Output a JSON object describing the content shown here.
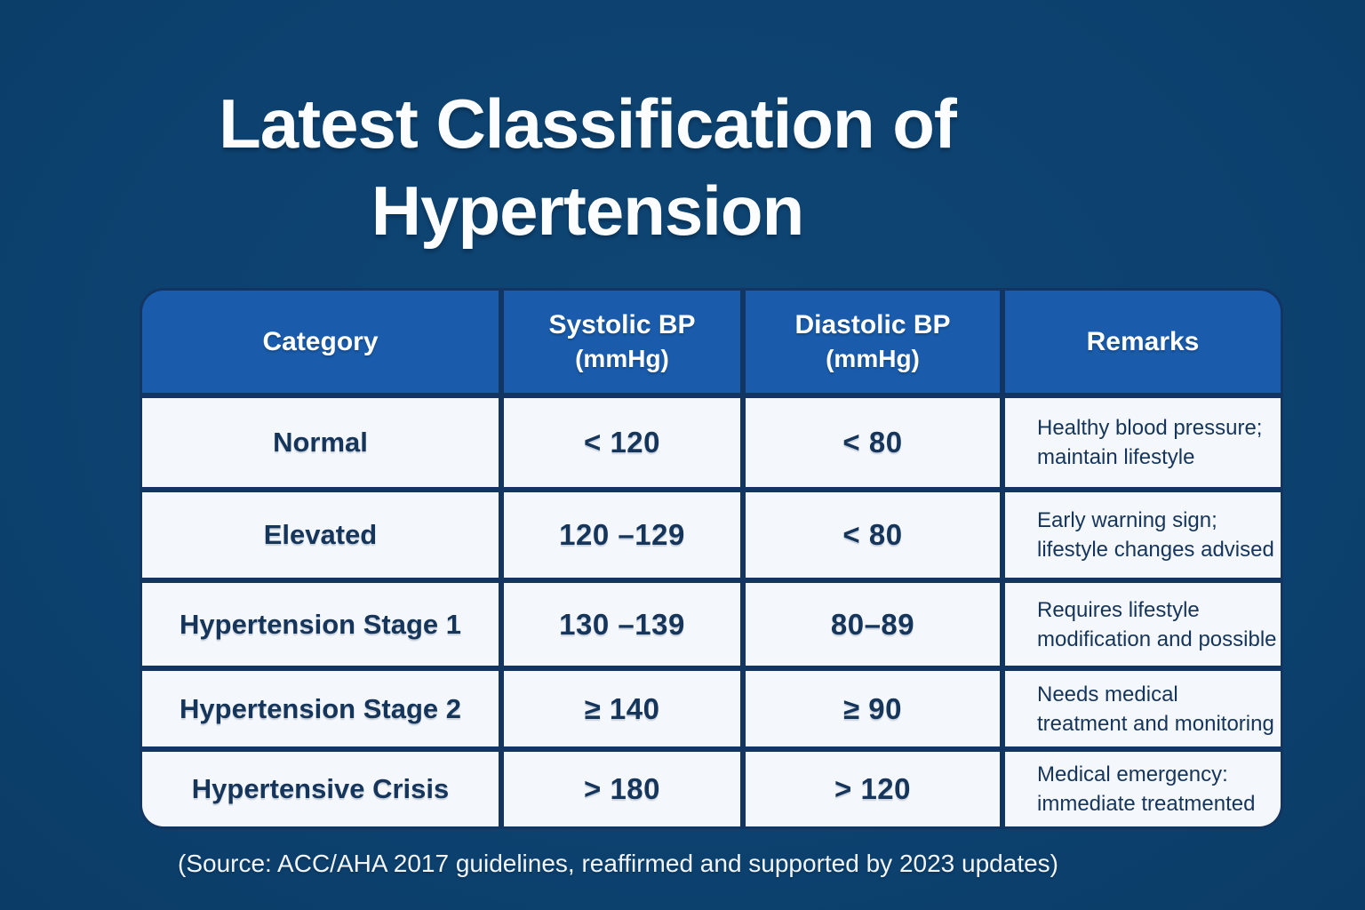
{
  "title": {
    "line1": "Latest Classification of",
    "line2": "Hypertension"
  },
  "table": {
    "headers": {
      "category": "Category",
      "systolic": "Systolic BP",
      "systolic_unit": "(mmHg)",
      "diastolic": "Diastolic BP",
      "diastolic_unit": "(mmHg)",
      "remarks": "Remarks"
    },
    "rows": [
      {
        "category": "Normal",
        "systolic": "< 120",
        "diastolic": "< 80",
        "remarks_line1": "Healthy blood pressure;",
        "remarks_line2": "maintain lifestyle"
      },
      {
        "category": "Elevated",
        "systolic": "120 –129",
        "diastolic": "< 80",
        "remarks_line1": "Early warning sign;",
        "remarks_line2": "lifestyle changes advised"
      },
      {
        "category": "Hypertension Stage 1",
        "systolic": "130 –139",
        "diastolic": "80–89",
        "remarks_line1": "Requires lifestyle",
        "remarks_line2": "modification and possible"
      },
      {
        "category": "Hypertension Stage 2",
        "systolic": "≥ 140",
        "diastolic": "≥ 90",
        "remarks_line1": "Needs medical",
        "remarks_line2": "treatment and monitoring"
      },
      {
        "category": "Hypertensive Crisis",
        "systolic": "> 180",
        "diastolic": "> 120",
        "remarks_line1": "Medical emergency:",
        "remarks_line2": "immediate treatmented"
      }
    ]
  },
  "source": "(Source: ACC/AHA 2017 guidelines, reaffirmed and supported by 2023 updates)",
  "chart_data": {
    "type": "table",
    "title": "Latest Classification of Hypertension",
    "columns": [
      "Category",
      "Systolic BP (mmHg)",
      "Diastolic BP (mmHg)",
      "Remarks"
    ],
    "rows": [
      [
        "Normal",
        "< 120",
        "< 80",
        "Healthy blood pressure; maintain lifestyle"
      ],
      [
        "Elevated",
        "120–129",
        "< 80",
        "Early warning sign; lifestyle changes advised"
      ],
      [
        "Hypertension Stage 1",
        "130–139",
        "80–89",
        "Requires lifestyle modification and possible"
      ],
      [
        "Hypertension Stage 2",
        "≥ 140",
        "≥ 90",
        "Needs medical treatment and monitoring"
      ],
      [
        "Hypertensive Crisis",
        "> 180",
        "> 120",
        "Medical emergency: immediate treatmented"
      ]
    ],
    "source": "ACC/AHA 2017 guidelines, reaffirmed and supported by 2023 updates"
  },
  "colors": {
    "background": "#0d4270",
    "header_blue": "#1a5cab",
    "cell_bg": "#f4f7fb",
    "border_navy": "#133561",
    "text_navy": "#16355b",
    "text_white": "#fcfdfe"
  }
}
